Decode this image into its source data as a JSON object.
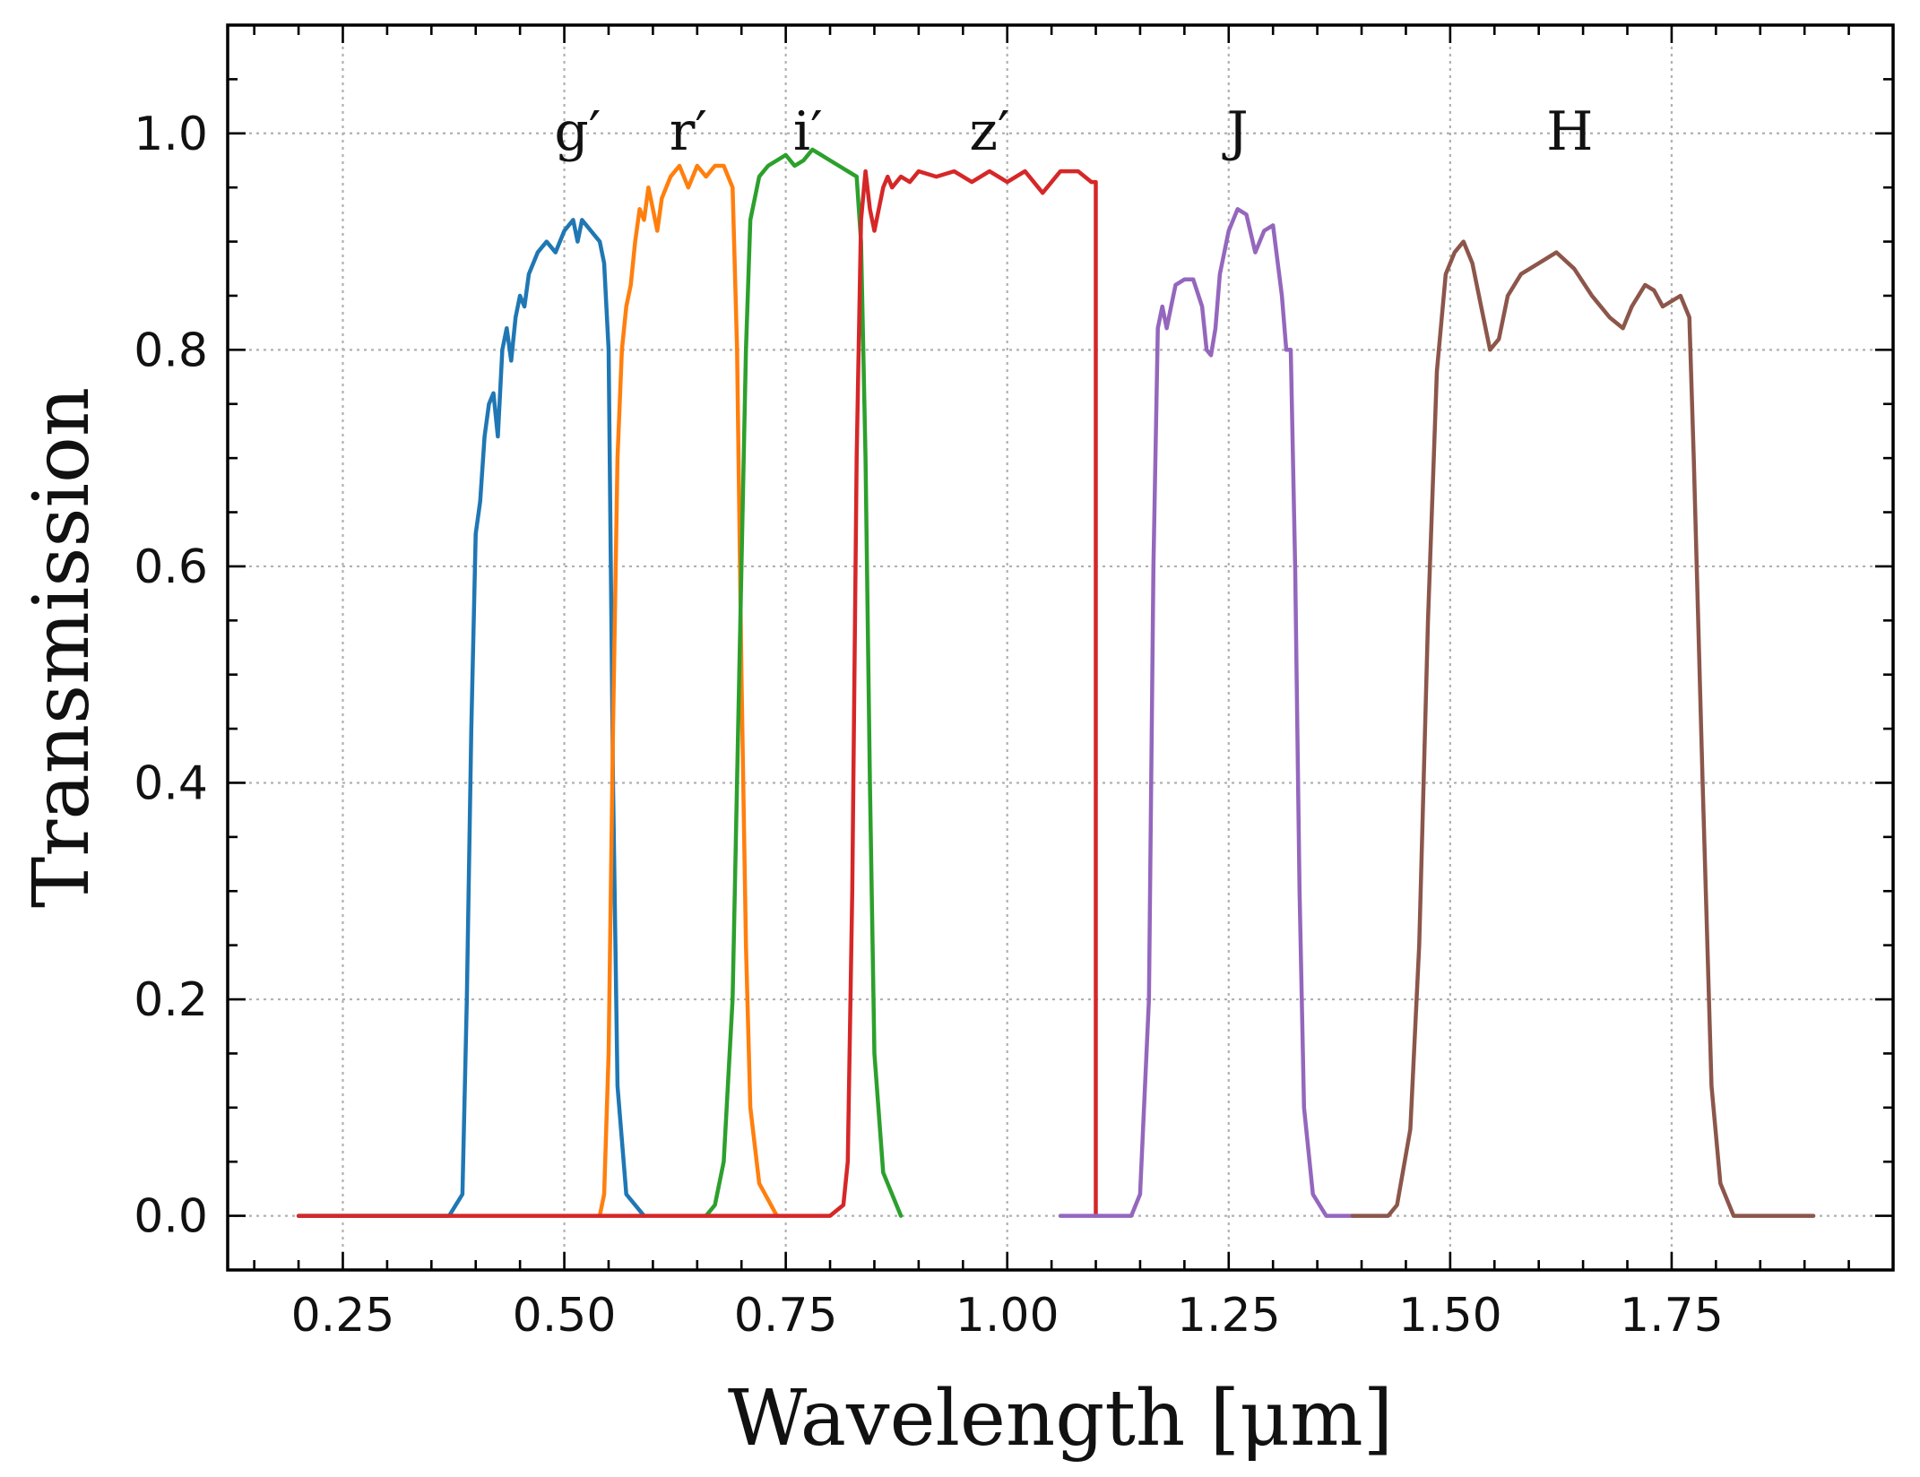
{
  "chart_data": {
    "type": "line",
    "xlabel": "Wavelength [μm]",
    "ylabel": "Transmission",
    "xlim": [
      0.12,
      2.0
    ],
    "ylim": [
      -0.05,
      1.1
    ],
    "xticks": [
      0.25,
      0.5,
      0.75,
      1.0,
      1.25,
      1.5,
      1.75
    ],
    "xtick_labels": [
      "0.25",
      "0.50",
      "0.75",
      "1.00",
      "1.25",
      "1.50",
      "1.75"
    ],
    "yticks": [
      0.0,
      0.2,
      0.4,
      0.6,
      0.8,
      1.0
    ],
    "ytick_labels": [
      "0.0",
      "0.2",
      "0.4",
      "0.6",
      "0.8",
      "1.0"
    ],
    "grid": true,
    "annotations": [
      {
        "text": "g′",
        "x": 0.515,
        "y": 1.0
      },
      {
        "text": "r′",
        "x": 0.64,
        "y": 1.0
      },
      {
        "text": "i′",
        "x": 0.775,
        "y": 1.0
      },
      {
        "text": "z′",
        "x": 0.98,
        "y": 1.0
      },
      {
        "text": "J",
        "x": 1.26,
        "y": 1.0
      },
      {
        "text": "H",
        "x": 1.635,
        "y": 1.0
      }
    ],
    "series": [
      {
        "color": "#1f77b4",
        "points": [
          [
            0.2,
            0
          ],
          [
            0.37,
            0
          ],
          [
            0.385,
            0.02
          ],
          [
            0.39,
            0.2
          ],
          [
            0.395,
            0.45
          ],
          [
            0.4,
            0.63
          ],
          [
            0.405,
            0.66
          ],
          [
            0.41,
            0.72
          ],
          [
            0.415,
            0.75
          ],
          [
            0.42,
            0.76
          ],
          [
            0.425,
            0.72
          ],
          [
            0.43,
            0.8
          ],
          [
            0.435,
            0.82
          ],
          [
            0.44,
            0.79
          ],
          [
            0.445,
            0.83
          ],
          [
            0.45,
            0.85
          ],
          [
            0.455,
            0.84
          ],
          [
            0.46,
            0.87
          ],
          [
            0.47,
            0.89
          ],
          [
            0.48,
            0.9
          ],
          [
            0.49,
            0.89
          ],
          [
            0.5,
            0.91
          ],
          [
            0.51,
            0.92
          ],
          [
            0.515,
            0.9
          ],
          [
            0.52,
            0.92
          ],
          [
            0.53,
            0.91
          ],
          [
            0.54,
            0.9
          ],
          [
            0.545,
            0.88
          ],
          [
            0.55,
            0.8
          ],
          [
            0.555,
            0.4
          ],
          [
            0.56,
            0.12
          ],
          [
            0.57,
            0.02
          ],
          [
            0.59,
            0.0
          ]
        ]
      },
      {
        "color": "#ff7f0e",
        "points": [
          [
            0.54,
            0
          ],
          [
            0.545,
            0.02
          ],
          [
            0.55,
            0.15
          ],
          [
            0.555,
            0.45
          ],
          [
            0.56,
            0.7
          ],
          [
            0.565,
            0.8
          ],
          [
            0.57,
            0.84
          ],
          [
            0.575,
            0.86
          ],
          [
            0.58,
            0.9
          ],
          [
            0.585,
            0.93
          ],
          [
            0.59,
            0.92
          ],
          [
            0.595,
            0.95
          ],
          [
            0.6,
            0.93
          ],
          [
            0.605,
            0.91
          ],
          [
            0.61,
            0.94
          ],
          [
            0.62,
            0.96
          ],
          [
            0.63,
            0.97
          ],
          [
            0.64,
            0.95
          ],
          [
            0.65,
            0.97
          ],
          [
            0.66,
            0.96
          ],
          [
            0.67,
            0.97
          ],
          [
            0.68,
            0.97
          ],
          [
            0.69,
            0.95
          ],
          [
            0.695,
            0.8
          ],
          [
            0.7,
            0.5
          ],
          [
            0.705,
            0.25
          ],
          [
            0.71,
            0.1
          ],
          [
            0.72,
            0.03
          ],
          [
            0.74,
            0.0
          ]
        ]
      },
      {
        "color": "#2ca02c",
        "points": [
          [
            0.66,
            0
          ],
          [
            0.67,
            0.01
          ],
          [
            0.68,
            0.05
          ],
          [
            0.69,
            0.2
          ],
          [
            0.7,
            0.6
          ],
          [
            0.705,
            0.8
          ],
          [
            0.71,
            0.92
          ],
          [
            0.72,
            0.96
          ],
          [
            0.73,
            0.97
          ],
          [
            0.74,
            0.975
          ],
          [
            0.75,
            0.98
          ],
          [
            0.76,
            0.97
          ],
          [
            0.77,
            0.975
          ],
          [
            0.78,
            0.985
          ],
          [
            0.79,
            0.98
          ],
          [
            0.8,
            0.975
          ],
          [
            0.81,
            0.97
          ],
          [
            0.82,
            0.965
          ],
          [
            0.83,
            0.96
          ],
          [
            0.835,
            0.9
          ],
          [
            0.84,
            0.7
          ],
          [
            0.845,
            0.4
          ],
          [
            0.85,
            0.15
          ],
          [
            0.86,
            0.04
          ],
          [
            0.88,
            0.0
          ]
        ]
      },
      {
        "color": "#d62728",
        "points": [
          [
            0.2,
            0
          ],
          [
            0.8,
            0
          ],
          [
            0.815,
            0.01
          ],
          [
            0.82,
            0.05
          ],
          [
            0.825,
            0.3
          ],
          [
            0.83,
            0.7
          ],
          [
            0.835,
            0.92
          ],
          [
            0.84,
            0.965
          ],
          [
            0.845,
            0.93
          ],
          [
            0.85,
            0.91
          ],
          [
            0.855,
            0.93
          ],
          [
            0.86,
            0.95
          ],
          [
            0.865,
            0.96
          ],
          [
            0.87,
            0.95
          ],
          [
            0.88,
            0.96
          ],
          [
            0.89,
            0.955
          ],
          [
            0.9,
            0.965
          ],
          [
            0.92,
            0.96
          ],
          [
            0.94,
            0.965
          ],
          [
            0.96,
            0.955
          ],
          [
            0.98,
            0.965
          ],
          [
            1.0,
            0.955
          ],
          [
            1.02,
            0.965
          ],
          [
            1.04,
            0.945
          ],
          [
            1.06,
            0.965
          ],
          [
            1.08,
            0.965
          ],
          [
            1.095,
            0.955
          ],
          [
            1.1,
            0.955
          ],
          [
            1.1,
            0.0
          ]
        ]
      },
      {
        "color": "#9467bd",
        "points": [
          [
            1.06,
            0
          ],
          [
            1.14,
            0
          ],
          [
            1.15,
            0.02
          ],
          [
            1.16,
            0.2
          ],
          [
            1.165,
            0.6
          ],
          [
            1.17,
            0.82
          ],
          [
            1.175,
            0.84
          ],
          [
            1.18,
            0.82
          ],
          [
            1.185,
            0.84
          ],
          [
            1.19,
            0.86
          ],
          [
            1.2,
            0.865
          ],
          [
            1.21,
            0.865
          ],
          [
            1.22,
            0.84
          ],
          [
            1.225,
            0.8
          ],
          [
            1.23,
            0.795
          ],
          [
            1.235,
            0.82
          ],
          [
            1.24,
            0.87
          ],
          [
            1.25,
            0.91
          ],
          [
            1.26,
            0.93
          ],
          [
            1.27,
            0.925
          ],
          [
            1.28,
            0.89
          ],
          [
            1.29,
            0.91
          ],
          [
            1.3,
            0.915
          ],
          [
            1.31,
            0.85
          ],
          [
            1.315,
            0.8
          ],
          [
            1.32,
            0.8
          ],
          [
            1.325,
            0.6
          ],
          [
            1.33,
            0.3
          ],
          [
            1.335,
            0.1
          ],
          [
            1.345,
            0.02
          ],
          [
            1.36,
            0.0
          ],
          [
            1.39,
            0.0
          ]
        ]
      },
      {
        "color": "#8c564b",
        "points": [
          [
            1.39,
            0
          ],
          [
            1.43,
            0
          ],
          [
            1.44,
            0.01
          ],
          [
            1.455,
            0.08
          ],
          [
            1.465,
            0.25
          ],
          [
            1.475,
            0.55
          ],
          [
            1.485,
            0.78
          ],
          [
            1.495,
            0.87
          ],
          [
            1.505,
            0.89
          ],
          [
            1.515,
            0.9
          ],
          [
            1.525,
            0.88
          ],
          [
            1.535,
            0.84
          ],
          [
            1.545,
            0.8
          ],
          [
            1.555,
            0.81
          ],
          [
            1.565,
            0.85
          ],
          [
            1.58,
            0.87
          ],
          [
            1.6,
            0.88
          ],
          [
            1.62,
            0.89
          ],
          [
            1.64,
            0.875
          ],
          [
            1.66,
            0.85
          ],
          [
            1.68,
            0.83
          ],
          [
            1.695,
            0.82
          ],
          [
            1.705,
            0.84
          ],
          [
            1.72,
            0.86
          ],
          [
            1.73,
            0.855
          ],
          [
            1.74,
            0.84
          ],
          [
            1.75,
            0.845
          ],
          [
            1.76,
            0.85
          ],
          [
            1.77,
            0.83
          ],
          [
            1.775,
            0.7
          ],
          [
            1.785,
            0.4
          ],
          [
            1.795,
            0.12
          ],
          [
            1.805,
            0.03
          ],
          [
            1.82,
            0.0
          ],
          [
            1.91,
            0.0
          ]
        ]
      }
    ]
  }
}
